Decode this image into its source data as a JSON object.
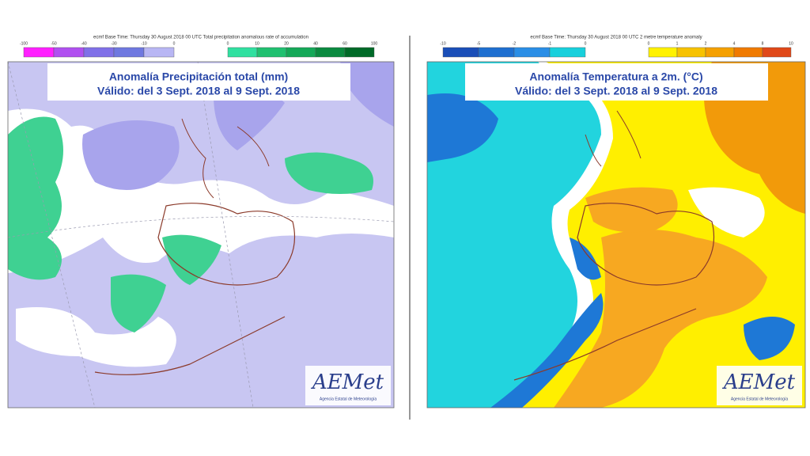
{
  "panels": [
    {
      "header": "ecmf Base Time: Thursday 30 August 2018 00 UTC Total precipitation anomalous rate of accumulation",
      "legend_left": [
        "-100",
        "-50",
        "-40",
        "-30",
        "-10",
        "0"
      ],
      "legend_right": [
        "0",
        "10",
        "20",
        "40",
        "60",
        "100"
      ],
      "title": "Anomalía Precipitación total (mm)",
      "subtitle": "Válido: del 3 Sept. 2018 al 9 Sept. 2018",
      "logo": "AEMet",
      "logo_caption": "Agencia Estatal de Meteorología"
    },
    {
      "header": "ecmf Base Time: Thursday 30 August 2018 00 UTC 2 metre temperature anomaly",
      "legend_left": [
        "-10",
        "-5",
        "-2",
        "-1",
        "0"
      ],
      "legend_right": [
        "0",
        "1",
        "2",
        "4",
        "8",
        "10"
      ],
      "title": "Anomalía Temperatura a 2m. (°C)",
      "subtitle": "Válido: del 3 Sept. 2018 al 9 Sept. 2018",
      "logo": "AEMet",
      "logo_caption": "Agencia Estatal de Meteorología"
    }
  ]
}
